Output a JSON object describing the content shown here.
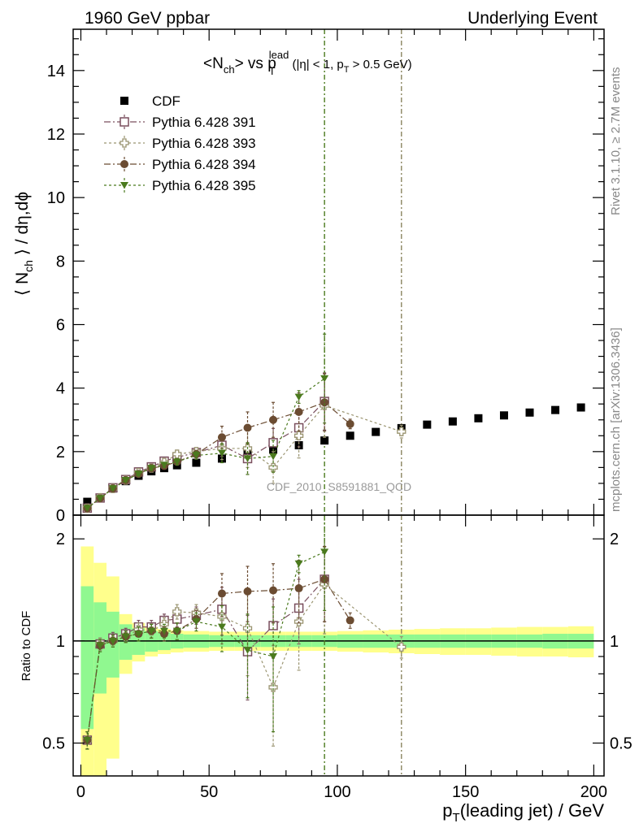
{
  "header": {
    "left": "1960 GeV ppbar",
    "right": "Underlying Event"
  },
  "side": {
    "rivet": "Rivet 3.1.10, ≥ 2.7M events",
    "mcplots": "mcplots.cern.ch [arXiv:1306.3436]"
  },
  "title": {
    "main": "<N",
    "sub_ch": "ch",
    "mid": "> vs p",
    "sub_T": "T",
    "sup_lead": "lead",
    "tail1": " (|η| < 1, p",
    "sub_T2": "T",
    "tail2": " > 0.5 GeV)"
  },
  "watermark": "CDF_2010_S8591881_QCD",
  "axes": {
    "ylabel": {
      "a": "⟨ N",
      "sub": "ch",
      "b": " ⟩ / dη,dϕ"
    },
    "ratio_ylabel": "Ratio to CDF",
    "xlabel": {
      "a": "p",
      "sub": "T",
      "b": "(leading jet) / GeV"
    },
    "x_ticks": [
      "0",
      "50",
      "100",
      "150",
      "200"
    ],
    "y_ticks": [
      "0",
      "2",
      "4",
      "6",
      "8",
      "10",
      "12",
      "14"
    ],
    "ratio_ticks": [
      "0.5",
      "1",
      "2"
    ]
  },
  "chart_data": {
    "type": "scatter",
    "xlim": [
      -3,
      204
    ],
    "ylim": [
      0,
      15.3
    ],
    "ratio_ylim": [
      0.4,
      2.35
    ],
    "ratio_scale": "log",
    "legend_position": "top-left",
    "vlines": [
      {
        "x": 95,
        "color": "#4b7a1e"
      },
      {
        "x": 125,
        "color": "#8b8560"
      }
    ],
    "cdf": {
      "name": "CDF",
      "color": "#000000",
      "x": [
        2.5,
        7.5,
        12.5,
        17.5,
        22.5,
        27.5,
        32.5,
        37.5,
        45,
        55,
        65,
        75,
        85,
        95,
        105,
        115,
        125,
        135,
        145,
        155,
        165,
        175,
        185,
        195
      ],
      "y": [
        0.42,
        0.55,
        0.84,
        1.07,
        1.24,
        1.38,
        1.48,
        1.57,
        1.65,
        1.78,
        1.92,
        2.06,
        2.2,
        2.35,
        2.5,
        2.62,
        2.74,
        2.85,
        2.95,
        3.05,
        3.14,
        3.23,
        3.31,
        3.39
      ],
      "band_x": [
        0,
        5,
        10,
        15,
        20,
        25,
        30,
        35,
        40,
        50,
        60,
        70,
        80,
        90,
        100,
        110,
        120,
        130,
        140,
        150,
        160,
        170,
        180,
        190,
        200
      ],
      "band_inner": [
        0.45,
        0.3,
        0.22,
        0.12,
        0.09,
        0.07,
        0.06,
        0.05,
        0.045,
        0.04,
        0.04,
        0.04,
        0.04,
        0.04,
        0.045,
        0.045,
        0.045,
        0.045,
        0.045,
        0.045,
        0.045,
        0.045,
        0.05,
        0.05
      ],
      "band_outer": [
        0.9,
        0.7,
        0.55,
        0.2,
        0.13,
        0.1,
        0.085,
        0.075,
        0.07,
        0.065,
        0.065,
        0.065,
        0.065,
        0.065,
        0.07,
        0.075,
        0.08,
        0.085,
        0.09,
        0.09,
        0.095,
        0.1,
        0.1,
        0.105
      ]
    },
    "series": [
      {
        "name": "Pythia 6.428 391",
        "color": "#7a4f5e",
        "marker": "open-square",
        "dash": "8,3,2,3",
        "x": [
          2.5,
          7.5,
          12.5,
          17.5,
          22.5,
          27.5,
          32.5,
          37.5,
          45,
          55,
          65,
          75,
          85,
          95
        ],
        "y": [
          0.22,
          0.54,
          0.86,
          1.12,
          1.36,
          1.52,
          1.7,
          1.82,
          1.97,
          2.2,
          1.78,
          2.28,
          2.75,
          3.58
        ],
        "err": [
          0.03,
          0.03,
          0.04,
          0.05,
          0.06,
          0.07,
          0.08,
          0.1,
          0.12,
          0.35,
          0.5,
          0.45,
          0.6,
          0.9
        ],
        "ratio": [
          0.51,
          0.98,
          1.02,
          1.05,
          1.1,
          1.1,
          1.15,
          1.16,
          1.19,
          1.24,
          0.93,
          1.11,
          1.25,
          1.52
        ],
        "ratio_err": [
          0.03,
          0.04,
          0.04,
          0.04,
          0.05,
          0.05,
          0.05,
          0.06,
          0.07,
          0.2,
          0.26,
          0.22,
          0.27,
          0.38
        ]
      },
      {
        "name": "Pythia 6.428 393",
        "color": "#9a9470",
        "marker": "open-cross",
        "dash": "3,3",
        "x": [
          2.5,
          7.5,
          12.5,
          17.5,
          22.5,
          27.5,
          32.5,
          37.5,
          45,
          55,
          65,
          75,
          85,
          95,
          125
        ],
        "y": [
          0.22,
          0.55,
          0.84,
          1.1,
          1.34,
          1.48,
          1.66,
          1.92,
          2.0,
          2.1,
          2.1,
          1.5,
          2.5,
          3.45,
          2.63
        ],
        "err": [
          0.03,
          0.03,
          0.04,
          0.05,
          0.06,
          0.07,
          0.08,
          0.1,
          0.12,
          0.35,
          0.6,
          0.5,
          0.7,
          1.0,
          0.2
        ],
        "ratio": [
          0.51,
          0.98,
          1.0,
          1.03,
          1.08,
          1.07,
          1.12,
          1.22,
          1.21,
          1.18,
          1.09,
          0.73,
          1.14,
          1.47,
          0.96
        ],
        "ratio_err": [
          0.03,
          0.04,
          0.04,
          0.04,
          0.05,
          0.05,
          0.05,
          0.06,
          0.07,
          0.2,
          0.3,
          0.24,
          0.32,
          0.42,
          0.07
        ]
      },
      {
        "name": "Pythia 6.428 394",
        "color": "#6b4c32",
        "marker": "filled-circle",
        "dash": "8,3,2,3",
        "x": [
          2.5,
          7.5,
          12.5,
          17.5,
          22.5,
          27.5,
          32.5,
          37.5,
          45,
          55,
          65,
          75,
          85,
          95,
          105
        ],
        "y": [
          0.21,
          0.53,
          0.84,
          1.1,
          1.3,
          1.48,
          1.55,
          1.68,
          1.92,
          2.45,
          2.75,
          3.0,
          3.25,
          3.55,
          2.87
        ],
        "err": [
          0.03,
          0.03,
          0.04,
          0.05,
          0.06,
          0.07,
          0.08,
          0.1,
          0.12,
          0.35,
          0.5,
          0.55,
          0.6,
          0.9,
          0.15
        ],
        "ratio": [
          0.51,
          0.97,
          1.0,
          1.03,
          1.05,
          1.07,
          1.05,
          1.07,
          1.16,
          1.38,
          1.4,
          1.41,
          1.43,
          1.52,
          1.15
        ],
        "ratio_err": [
          0.03,
          0.04,
          0.04,
          0.04,
          0.05,
          0.05,
          0.05,
          0.06,
          0.07,
          0.2,
          0.26,
          0.28,
          0.3,
          0.38,
          0.06
        ]
      },
      {
        "name": "Pythia 6.428 395",
        "color": "#4b7a1e",
        "marker": "filled-triangle-down",
        "dash": "3,3",
        "x": [
          2.5,
          7.5,
          12.5,
          17.5,
          22.5,
          27.5,
          32.5,
          37.5,
          45,
          55,
          65,
          75,
          85,
          95
        ],
        "y": [
          0.22,
          0.53,
          0.84,
          1.1,
          1.3,
          1.48,
          1.58,
          1.68,
          1.88,
          1.95,
          1.78,
          1.85,
          3.72,
          4.3
        ],
        "err": [
          0.03,
          0.03,
          0.04,
          0.05,
          0.06,
          0.07,
          0.08,
          0.1,
          0.12,
          0.3,
          0.5,
          0.5,
          0.2,
          1.4
        ],
        "ratio": [
          0.51,
          0.97,
          1.0,
          1.03,
          1.05,
          1.07,
          1.07,
          1.07,
          1.14,
          1.1,
          0.94,
          0.9,
          1.69,
          1.83
        ],
        "ratio_err": [
          0.03,
          0.04,
          0.04,
          0.04,
          0.05,
          0.05,
          0.05,
          0.06,
          0.07,
          0.17,
          0.26,
          0.36,
          0.1,
          0.6
        ]
      }
    ]
  }
}
